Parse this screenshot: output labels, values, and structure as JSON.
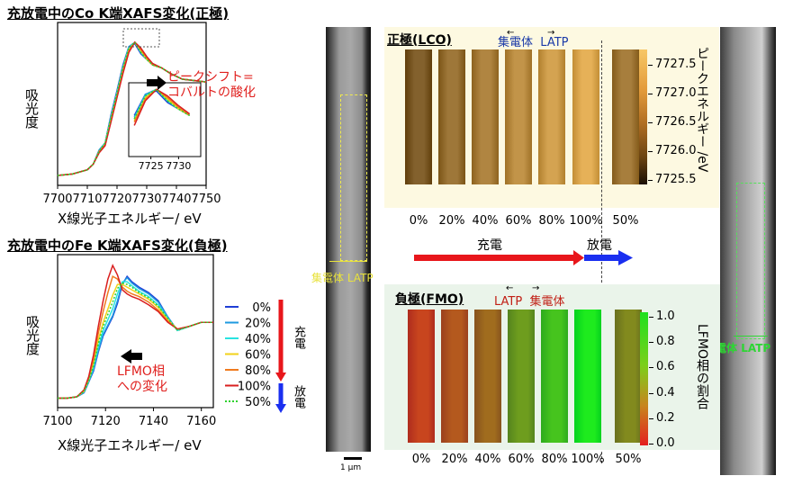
{
  "panel_co": {
    "title": "充放電中のCo K端XAFS変化(正極)",
    "ylabel": "吸光度",
    "xlabel": "X線光子エネルギー/ eV",
    "x_ticks": [
      "7700",
      "7710",
      "7720",
      "7730",
      "7740",
      "7750"
    ],
    "inset_ticks": [
      "7725",
      "7730"
    ],
    "annotation": [
      "ピークシフト=",
      "コバルトの酸化"
    ]
  },
  "panel_fe": {
    "title": "充放電中のFe K端XAFS変化(負極)",
    "ylabel": "吸光度",
    "xlabel": "X線光子エネルギー/ eV",
    "x_ticks": [
      "7100",
      "7120",
      "7140",
      "7160"
    ],
    "annotation": [
      "LFMO相",
      "への変化"
    ]
  },
  "legend": {
    "items": [
      {
        "label": "0%",
        "color": "#1f3fd6",
        "style": "solid"
      },
      {
        "label": "20%",
        "color": "#1e9ae0",
        "style": "solid"
      },
      {
        "label": "40%",
        "color": "#28e3e0",
        "style": "solid"
      },
      {
        "label": "60%",
        "color": "#f2d21a",
        "style": "solid"
      },
      {
        "label": "80%",
        "color": "#f07a1e",
        "style": "solid"
      },
      {
        "label": "100%",
        "color": "#d91f1f",
        "style": "solid"
      },
      {
        "label": "50%",
        "color": "#2ed12e",
        "style": "dotted"
      }
    ],
    "charge": "充電",
    "discharge": "放電"
  },
  "tem": {
    "left_label_a": "集電体",
    "left_label_b": "LATP",
    "right_label_a": "集電体",
    "right_label_b": "LATP",
    "scalebar": "1 μm"
  },
  "maps_top": {
    "title": "正極(LCO)",
    "label_a": "集電体",
    "label_b": "LATP",
    "colorbar_title": "ピークエネルギー /eV",
    "colorbar_ticks": [
      "7727.5",
      "7727.0",
      "7726.5",
      "7726.0",
      "7725.5"
    ],
    "states": [
      "0%",
      "20%",
      "40%",
      "60%",
      "80%",
      "100%",
      "50%"
    ]
  },
  "maps_bottom": {
    "title": "負極(FMO)",
    "label_a": "LATP",
    "label_b": "集電体",
    "colorbar_title": "LFMO相の割合",
    "colorbar_ticks": [
      "1.0",
      "0.8",
      "0.6",
      "0.4",
      "0.2",
      "0.0"
    ],
    "states": [
      "0%",
      "20%",
      "40%",
      "60%",
      "80%",
      "100%",
      "50%"
    ]
  },
  "process": {
    "charge": "充電",
    "discharge": "放電",
    "charge_color": "#e8161b",
    "discharge_color": "#1a2ff0"
  },
  "chart_data": [
    {
      "type": "line",
      "title": "充放電中のCo K端XAFS変化(正極)",
      "xlabel": "X線光子エネルギー/ eV",
      "ylabel": "吸光度",
      "xlim": [
        7700,
        7750
      ],
      "x": [
        7700,
        7705,
        7710,
        7712,
        7714,
        7716,
        7718,
        7720,
        7722,
        7724,
        7726,
        7728,
        7730,
        7732,
        7735,
        7738,
        7742,
        7746,
        7750
      ],
      "series": [
        {
          "name": "0%",
          "values": [
            0.02,
            0.03,
            0.06,
            0.1,
            0.2,
            0.25,
            0.45,
            0.62,
            0.8,
            0.93,
            0.95,
            0.88,
            0.84,
            0.8,
            0.78,
            0.74,
            0.7,
            0.69,
            0.68
          ]
        },
        {
          "name": "20%",
          "values": [
            0.02,
            0.03,
            0.06,
            0.1,
            0.2,
            0.25,
            0.44,
            0.61,
            0.79,
            0.93,
            0.96,
            0.89,
            0.84,
            0.8,
            0.78,
            0.74,
            0.7,
            0.69,
            0.68
          ]
        },
        {
          "name": "40%",
          "values": [
            0.02,
            0.03,
            0.06,
            0.1,
            0.19,
            0.25,
            0.43,
            0.6,
            0.78,
            0.92,
            0.96,
            0.89,
            0.84,
            0.8,
            0.78,
            0.74,
            0.7,
            0.69,
            0.68
          ]
        },
        {
          "name": "60%",
          "values": [
            0.02,
            0.03,
            0.06,
            0.1,
            0.19,
            0.24,
            0.42,
            0.59,
            0.77,
            0.91,
            0.96,
            0.9,
            0.84,
            0.8,
            0.78,
            0.74,
            0.7,
            0.69,
            0.68
          ]
        },
        {
          "name": "80%",
          "values": [
            0.02,
            0.03,
            0.06,
            0.1,
            0.19,
            0.24,
            0.41,
            0.58,
            0.76,
            0.9,
            0.96,
            0.91,
            0.85,
            0.8,
            0.78,
            0.74,
            0.7,
            0.69,
            0.68
          ]
        },
        {
          "name": "100%",
          "values": [
            0.02,
            0.03,
            0.06,
            0.1,
            0.18,
            0.23,
            0.4,
            0.57,
            0.74,
            0.89,
            0.96,
            0.92,
            0.86,
            0.81,
            0.78,
            0.74,
            0.7,
            0.69,
            0.68
          ]
        },
        {
          "name": "50%",
          "values": [
            0.02,
            0.03,
            0.06,
            0.1,
            0.19,
            0.25,
            0.43,
            0.6,
            0.78,
            0.92,
            0.96,
            0.89,
            0.84,
            0.8,
            0.78,
            0.74,
            0.7,
            0.69,
            0.68
          ]
        }
      ]
    },
    {
      "type": "line",
      "title": "充放電中のFe K端XAFS変化(負極)",
      "xlabel": "X線光子エネルギー/ eV",
      "ylabel": "吸光度",
      "xlim": [
        7100,
        7165
      ],
      "x": [
        7100,
        7104,
        7108,
        7111,
        7113,
        7115,
        7117,
        7119,
        7121,
        7123,
        7125,
        7127,
        7129,
        7131,
        7134,
        7138,
        7142,
        7146,
        7150,
        7155,
        7160,
        7165
      ],
      "series": [
        {
          "name": "0%",
          "values": [
            0.02,
            0.02,
            0.03,
            0.06,
            0.14,
            0.22,
            0.36,
            0.48,
            0.55,
            0.62,
            0.72,
            0.86,
            0.92,
            0.88,
            0.84,
            0.8,
            0.74,
            0.62,
            0.52,
            0.55,
            0.58,
            0.58
          ]
        },
        {
          "name": "20%",
          "values": [
            0.02,
            0.02,
            0.03,
            0.06,
            0.14,
            0.23,
            0.37,
            0.49,
            0.56,
            0.63,
            0.74,
            0.87,
            0.91,
            0.87,
            0.83,
            0.79,
            0.73,
            0.62,
            0.52,
            0.55,
            0.58,
            0.58
          ]
        },
        {
          "name": "40%",
          "values": [
            0.02,
            0.02,
            0.03,
            0.07,
            0.15,
            0.25,
            0.4,
            0.52,
            0.6,
            0.68,
            0.79,
            0.88,
            0.88,
            0.85,
            0.81,
            0.77,
            0.71,
            0.61,
            0.52,
            0.55,
            0.58,
            0.58
          ]
        },
        {
          "name": "60%",
          "values": [
            0.02,
            0.02,
            0.03,
            0.07,
            0.16,
            0.28,
            0.45,
            0.58,
            0.68,
            0.78,
            0.86,
            0.86,
            0.84,
            0.82,
            0.79,
            0.75,
            0.69,
            0.6,
            0.53,
            0.55,
            0.58,
            0.58
          ]
        },
        {
          "name": "80%",
          "values": [
            0.02,
            0.02,
            0.03,
            0.08,
            0.17,
            0.31,
            0.5,
            0.66,
            0.8,
            0.92,
            0.9,
            0.84,
            0.81,
            0.79,
            0.77,
            0.73,
            0.67,
            0.59,
            0.53,
            0.55,
            0.58,
            0.58
          ]
        },
        {
          "name": "100%",
          "values": [
            0.02,
            0.02,
            0.03,
            0.08,
            0.18,
            0.34,
            0.55,
            0.74,
            0.9,
            1.0,
            0.93,
            0.82,
            0.79,
            0.77,
            0.75,
            0.71,
            0.66,
            0.58,
            0.53,
            0.55,
            0.58,
            0.58
          ]
        },
        {
          "name": "50%",
          "values": [
            0.02,
            0.02,
            0.03,
            0.07,
            0.15,
            0.26,
            0.42,
            0.55,
            0.64,
            0.73,
            0.83,
            0.87,
            0.86,
            0.84,
            0.8,
            0.76,
            0.7,
            0.61,
            0.52,
            0.55,
            0.58,
            0.58
          ]
        }
      ]
    },
    {
      "type": "heatmap",
      "title": "正極(LCO)",
      "colorbar_label": "ピークエネルギー /eV",
      "range": [
        7725.3,
        7727.7
      ],
      "categories": [
        "0%",
        "20%",
        "40%",
        "60%",
        "80%",
        "100%",
        "50%"
      ],
      "values": [
        7726.2,
        7726.5,
        7726.7,
        7726.9,
        7727.1,
        7727.3,
        7726.6
      ]
    },
    {
      "type": "heatmap",
      "title": "負極(FMO)",
      "colorbar_label": "LFMO相の割合",
      "range": [
        0,
        1
      ],
      "categories": [
        "0%",
        "20%",
        "40%",
        "60%",
        "80%",
        "100%",
        "50%"
      ],
      "values": [
        0.15,
        0.25,
        0.35,
        0.6,
        0.8,
        1.0,
        0.5
      ]
    }
  ]
}
